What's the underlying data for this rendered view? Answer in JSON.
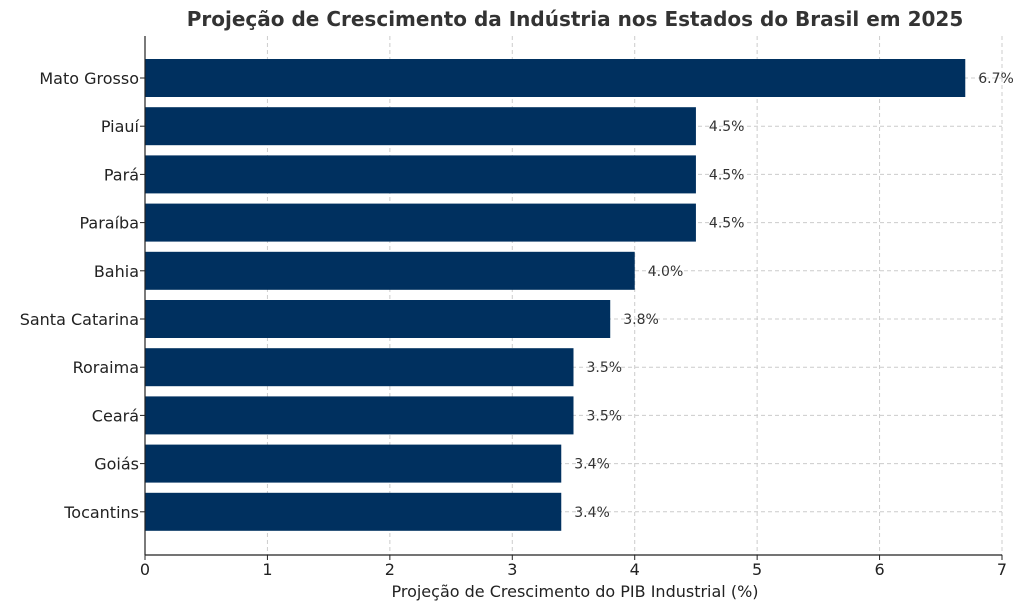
{
  "chart_data": {
    "type": "bar",
    "orientation": "horizontal",
    "title": "Projeção de Crescimento da Indústria nos Estados do Brasil em 2025",
    "xlabel": "Projeção de Crescimento do PIB Industrial (%)",
    "ylabel": "",
    "xlim": [
      0,
      7
    ],
    "xticks": [
      "0",
      "1",
      "2",
      "3",
      "4",
      "5",
      "6",
      "7"
    ],
    "grid": true,
    "categories": [
      "Mato Grosso",
      "Piauí",
      "Pará",
      "Paraíba",
      "Bahia",
      "Santa Catarina",
      "Roraima",
      "Ceará",
      "Goiás",
      "Tocantins"
    ],
    "values": [
      6.7,
      4.5,
      4.5,
      4.5,
      4.0,
      3.8,
      3.5,
      3.5,
      3.4,
      3.4
    ],
    "value_labels": [
      "6.7%",
      "4.5%",
      "4.5%",
      "4.5%",
      "4.0%",
      "3.8%",
      "3.5%",
      "3.5%",
      "3.4%",
      "3.4%"
    ],
    "bar_color": "#00305f",
    "grid_color": "#cccccc"
  }
}
